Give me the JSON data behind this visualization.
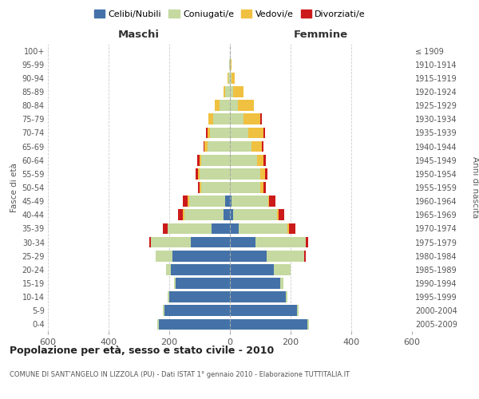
{
  "age_groups": [
    "0-4",
    "5-9",
    "10-14",
    "15-19",
    "20-24",
    "25-29",
    "30-34",
    "35-39",
    "40-44",
    "45-49",
    "50-54",
    "55-59",
    "60-64",
    "65-69",
    "70-74",
    "75-79",
    "80-84",
    "85-89",
    "90-94",
    "95-99",
    "100+"
  ],
  "birth_years": [
    "2005-2009",
    "2000-2004",
    "1995-1999",
    "1990-1994",
    "1985-1989",
    "1980-1984",
    "1975-1979",
    "1970-1974",
    "1965-1969",
    "1960-1964",
    "1955-1959",
    "1950-1954",
    "1945-1949",
    "1940-1944",
    "1935-1939",
    "1930-1934",
    "1925-1929",
    "1920-1924",
    "1915-1919",
    "1910-1914",
    "≤ 1909"
  ],
  "maschi": {
    "celibi": [
      235,
      215,
      200,
      180,
      195,
      190,
      130,
      60,
      20,
      15,
      0,
      0,
      0,
      0,
      0,
      0,
      0,
      0,
      0,
      0,
      0
    ],
    "coniugati": [
      5,
      5,
      5,
      5,
      15,
      55,
      130,
      145,
      130,
      120,
      95,
      100,
      95,
      75,
      65,
      55,
      35,
      15,
      5,
      2,
      1
    ],
    "vedovi": [
      0,
      0,
      0,
      0,
      0,
      0,
      0,
      0,
      5,
      5,
      5,
      5,
      5,
      8,
      10,
      15,
      15,
      5,
      2,
      0,
      0
    ],
    "divorziati": [
      0,
      0,
      0,
      0,
      0,
      0,
      5,
      15,
      15,
      15,
      5,
      8,
      8,
      5,
      5,
      0,
      0,
      0,
      0,
      0,
      0
    ]
  },
  "femmine": {
    "nubili": [
      255,
      220,
      185,
      165,
      145,
      120,
      85,
      30,
      10,
      5,
      0,
      0,
      0,
      0,
      0,
      0,
      0,
      0,
      0,
      0,
      0
    ],
    "coniugate": [
      5,
      5,
      5,
      10,
      55,
      125,
      165,
      160,
      145,
      120,
      100,
      100,
      90,
      70,
      60,
      45,
      25,
      10,
      5,
      2,
      1
    ],
    "vedove": [
      0,
      0,
      0,
      0,
      0,
      0,
      0,
      5,
      5,
      5,
      10,
      15,
      20,
      35,
      50,
      55,
      55,
      35,
      10,
      2,
      0
    ],
    "divorziate": [
      0,
      0,
      0,
      0,
      0,
      5,
      8,
      20,
      20,
      20,
      8,
      8,
      8,
      5,
      5,
      5,
      0,
      0,
      0,
      0,
      0
    ]
  },
  "colors": {
    "celibi": "#4472a8",
    "coniugati": "#c5d9a0",
    "vedovi": "#f0c040",
    "divorziati": "#cc1a1a"
  },
  "xlim": 600,
  "title": "Popolazione per età, sesso e stato civile - 2010",
  "subtitle": "COMUNE DI SANT'ANGELO IN LIZZOLA (PU) - Dati ISTAT 1° gennaio 2010 - Elaborazione TUTTITALIA.IT",
  "ylabel_left": "Fasce di età",
  "ylabel_right": "Anni di nascita",
  "maschi_label": "Maschi",
  "femmine_label": "Femmine",
  "legend_labels": [
    "Celibi/Nubili",
    "Coniugati/e",
    "Vedovi/e",
    "Divorziati/e"
  ]
}
